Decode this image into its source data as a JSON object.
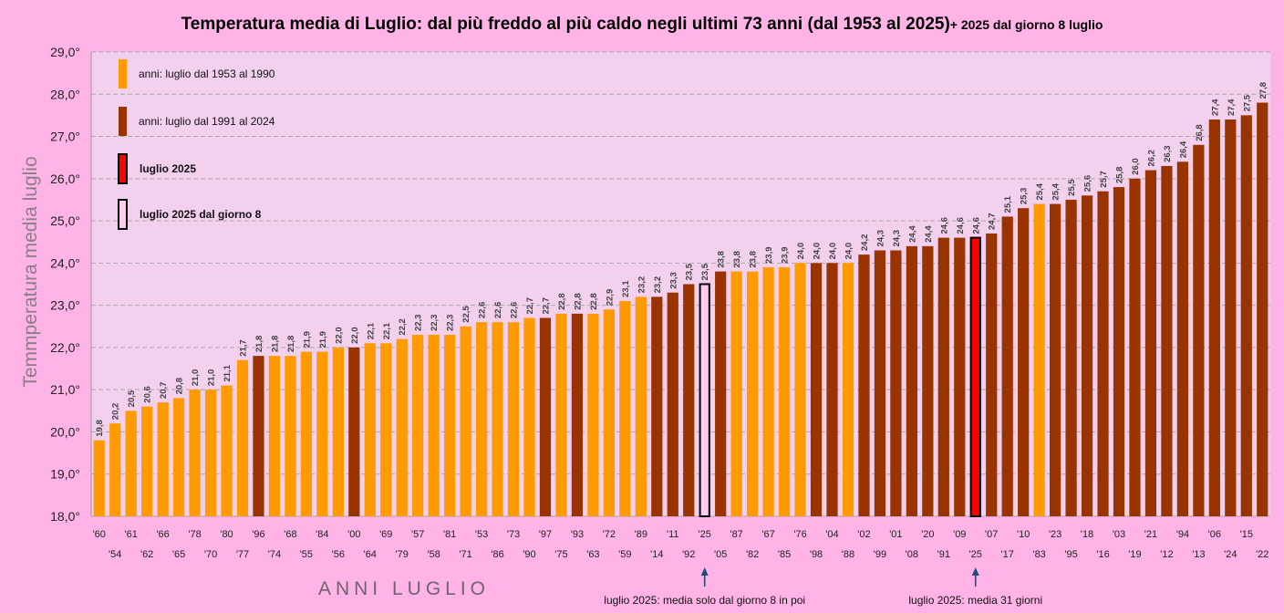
{
  "chart_data": {
    "type": "bar",
    "title": "Temperatura media di Luglio: dal più freddo al più caldo negli ultimi 73 anni   (dal 1953 al 2025)",
    "title_suffix": "+ 2025 dal  giorno 8 luglio",
    "ylabel": "Temmperatura  media  luglio",
    "xlabel": "ANNI   LUGLIO",
    "ylim": [
      18.0,
      29.0
    ],
    "yticks": [
      "18,0°",
      "19,0°",
      "20,0°",
      "21,0°",
      "22,0°",
      "23,0°",
      "24,0°",
      "25,0°",
      "26,0°",
      "27,0°",
      "28,0°",
      "29,0°"
    ],
    "grid": true,
    "colors": {
      "period_1953_1990": "#ff9a00",
      "period_1991_2024": "#993300",
      "july_2025": "#ff0000",
      "july_2025_from_8": "#ffccee",
      "plot_bg": "#f2d0ee",
      "page_bg": "#ffb3e6",
      "grid": "#a8a8a8"
    },
    "legend": {
      "placement": "top-left",
      "items": [
        {
          "label": "anni:  luglio  dal 1953 al 1990",
          "key": "period_1953_1990",
          "bold": false
        },
        {
          "label": "anni:  luglio  dal 1991 al 2024",
          "key": "period_1991_2024",
          "bold": false
        },
        {
          "label": "luglio 2025",
          "key": "july_2025",
          "bold": true
        },
        {
          "label": "luglio 2025 dal giorno 8",
          "key": "july_2025_from_8",
          "bold": true
        }
      ]
    },
    "annotations": [
      {
        "text": "luglio 2025: media solo dal giorno 8 in poi",
        "category_index": 38
      },
      {
        "text": "luglio 2025: media 31 giorni",
        "category_index": 55
      }
    ],
    "categories": [
      "'60",
      "'54",
      "'61",
      "'62",
      "'66",
      "'65",
      "'78",
      "'70",
      "'80",
      "'77",
      "'96",
      "'74",
      "'68",
      "'55",
      "'84",
      "'56",
      "'00",
      "'64",
      "'69",
      "'79",
      "'57",
      "'58",
      "'81",
      "'71",
      "'53",
      "'86",
      "'73",
      "'90",
      "'97",
      "'75",
      "'93",
      "'63",
      "'72",
      "'59",
      "'89",
      "'14",
      "'11",
      "'92",
      "'25",
      "'05",
      "'87",
      "'82",
      "'67",
      "'85",
      "'76",
      "'98",
      "'04",
      "'88",
      "'02",
      "'99",
      "'01",
      "'08",
      "'20",
      "'91",
      "'09",
      "'25",
      "'07",
      "'17",
      "'10",
      "'83",
      "'23",
      "'95",
      "'18",
      "'16",
      "'03",
      "'19",
      "'21",
      "'12",
      "'94",
      "'13",
      "'06",
      "'24",
      "'15",
      "'22"
    ],
    "values": [
      19.8,
      20.2,
      20.5,
      20.6,
      20.7,
      20.8,
      21.0,
      21.0,
      21.1,
      21.7,
      21.8,
      21.8,
      21.8,
      21.9,
      21.9,
      22.0,
      22.0,
      22.1,
      22.1,
      22.2,
      22.3,
      22.3,
      22.3,
      22.5,
      22.6,
      22.6,
      22.6,
      22.7,
      22.7,
      22.8,
      22.8,
      22.8,
      22.9,
      23.1,
      23.2,
      23.2,
      23.3,
      23.5,
      23.5,
      23.8,
      23.8,
      23.8,
      23.9,
      23.9,
      24.0,
      24.0,
      24.0,
      24.0,
      24.2,
      24.3,
      24.3,
      24.4,
      24.4,
      24.6,
      24.6,
      24.6,
      24.7,
      25.1,
      25.3,
      25.4,
      25.4,
      25.5,
      25.6,
      25.7,
      25.8,
      26.0,
      26.2,
      26.3,
      26.4,
      26.8,
      27.4,
      27.4,
      27.5,
      27.8
    ],
    "data_labels": [
      "19,8",
      "20,2",
      "20,5",
      "20,6",
      "20,7",
      "20,8",
      "21,0",
      "21,0",
      "21,1",
      "21,7",
      "21,8",
      "21,8",
      "21,8",
      "21,9",
      "21,9",
      "22,0",
      "22,0",
      "22,1",
      "22,1",
      "22,2",
      "22,3",
      "22,3",
      "22,3",
      "22,5",
      "22,6",
      "22,6",
      "22,6",
      "22,7",
      "22,7",
      "22,8",
      "22,8",
      "22,8",
      "22,9",
      "23,1",
      "23,2",
      "23,2",
      "23,3",
      "23,5",
      "23,5",
      "23,8",
      "23,8",
      "23,8",
      "23,9",
      "23,9",
      "24,0",
      "24,0",
      "24,0",
      "24,0",
      "24,2",
      "24,3",
      "24,3",
      "24,4",
      "24,4",
      "24,6",
      "24,6",
      "24,6",
      "24,7",
      "25,1",
      "25,3",
      "25,4",
      "25,4",
      "25,5",
      "25,6",
      "25,7",
      "25,8",
      "26,0",
      "26,2",
      "26,3",
      "26,4",
      "26,8",
      "27,4",
      "27,4",
      "27,5",
      "27,8"
    ],
    "bar_groups": [
      "period_1953_1990",
      "period_1953_1990",
      "period_1953_1990",
      "period_1953_1990",
      "period_1953_1990",
      "period_1953_1990",
      "period_1953_1990",
      "period_1953_1990",
      "period_1953_1990",
      "period_1953_1990",
      "period_1991_2024",
      "period_1953_1990",
      "period_1953_1990",
      "period_1953_1990",
      "period_1953_1990",
      "period_1953_1990",
      "period_1991_2024",
      "period_1953_1990",
      "period_1953_1990",
      "period_1953_1990",
      "period_1953_1990",
      "period_1953_1990",
      "period_1953_1990",
      "period_1953_1990",
      "period_1953_1990",
      "period_1953_1990",
      "period_1953_1990",
      "period_1953_1990",
      "period_1991_2024",
      "period_1953_1990",
      "period_1991_2024",
      "period_1953_1990",
      "period_1953_1990",
      "period_1953_1990",
      "period_1953_1990",
      "period_1991_2024",
      "period_1991_2024",
      "period_1991_2024",
      "july_2025_from_8",
      "period_1991_2024",
      "period_1953_1990",
      "period_1953_1990",
      "period_1953_1990",
      "period_1953_1990",
      "period_1953_1990",
      "period_1991_2024",
      "period_1991_2024",
      "period_1953_1990",
      "period_1991_2024",
      "period_1991_2024",
      "period_1991_2024",
      "period_1991_2024",
      "period_1991_2024",
      "period_1991_2024",
      "period_1991_2024",
      "july_2025",
      "period_1991_2024",
      "period_1991_2024",
      "period_1991_2024",
      "period_1953_1990",
      "period_1991_2024",
      "period_1991_2024",
      "period_1991_2024",
      "period_1991_2024",
      "period_1991_2024",
      "period_1991_2024",
      "period_1991_2024",
      "period_1991_2024",
      "period_1991_2024",
      "period_1991_2024",
      "period_1991_2024",
      "period_1991_2024",
      "period_1991_2024",
      "period_1991_2024"
    ]
  }
}
